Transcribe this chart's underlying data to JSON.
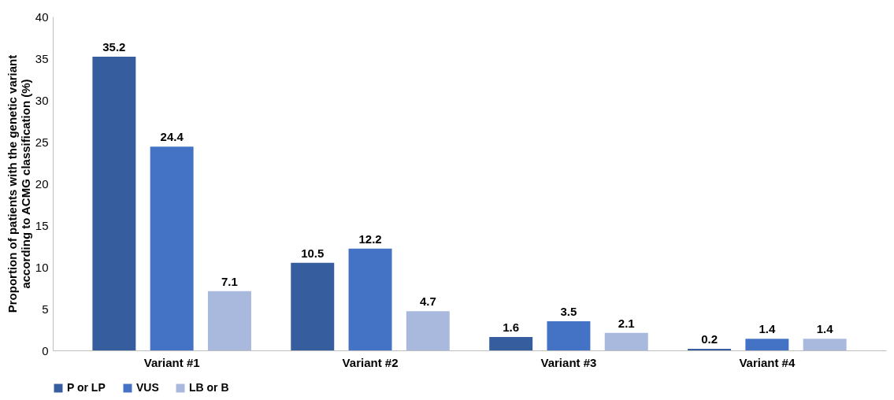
{
  "chart_data": {
    "type": "bar",
    "ylabel": "Proportion of patients with the genetic variant\naccording to ACMG classification (%)",
    "categories": [
      "Variant #1",
      "Variant #2",
      "Variant #3",
      "Variant #4"
    ],
    "series": [
      {
        "name": "P or LP",
        "color": "#365e9f",
        "values": [
          35.2,
          10.5,
          1.6,
          0.2
        ]
      },
      {
        "name": "VUS",
        "color": "#4472c4",
        "values": [
          24.4,
          12.2,
          3.5,
          1.4
        ]
      },
      {
        "name": "LB or B",
        "color": "#a9b8dd",
        "values": [
          7.1,
          4.7,
          2.1,
          1.4
        ]
      }
    ],
    "ylim": [
      0,
      40
    ],
    "yticks": [
      0,
      5,
      10,
      15,
      20,
      25,
      30,
      35,
      40
    ],
    "grid": false,
    "legend": "bottom",
    "data_labels": true
  }
}
